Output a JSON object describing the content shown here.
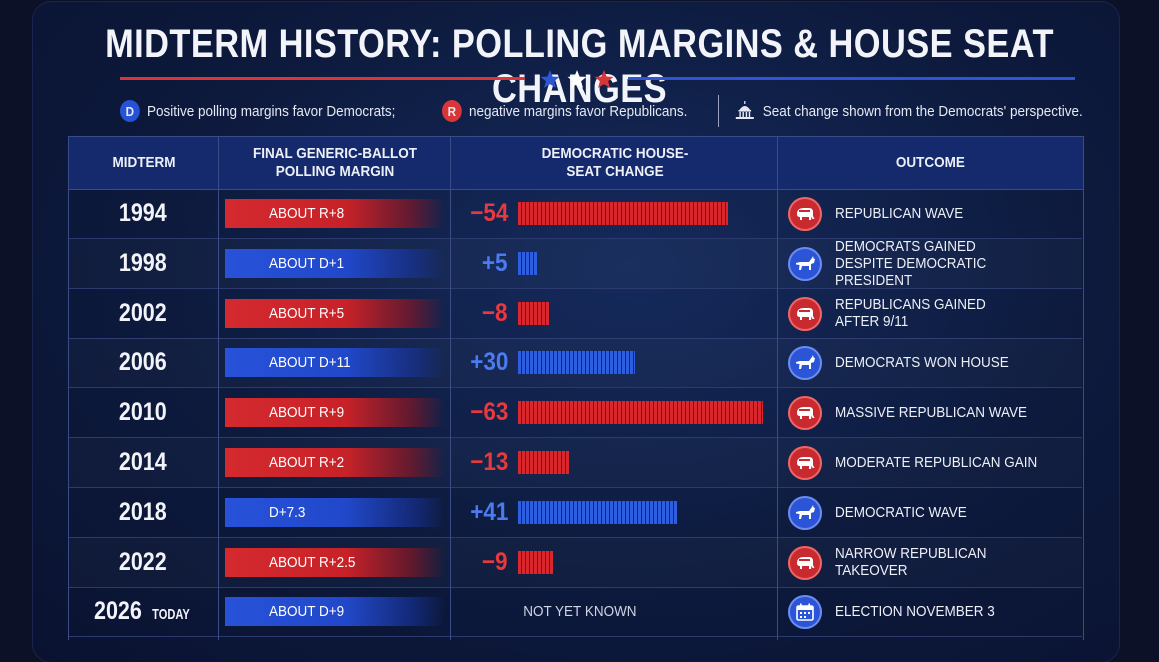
{
  "title": "MIDTERM HISTORY: POLLING MARGINS & HOUSE SEAT CHANGES",
  "legend": {
    "d_badge": "D",
    "d_text": "Positive polling margins favor Democrats;",
    "r_badge": "R",
    "r_text": "negative margins favor Republicans.",
    "seat_note": "Seat change shown from the Democrats' perspective."
  },
  "colors": {
    "republican": "#d42a2f",
    "democrat": "#2752d9",
    "header": "#142a6c",
    "background": "#0d1a3d"
  },
  "headers": {
    "midterm": "MIDTERM",
    "polling": "FINAL GENERIC-BALLOT POLLING MARGIN",
    "seat": "DEMOCRATIC HOUSE-SEAT CHANGE",
    "outcome": "OUTCOME"
  },
  "chart_data": {
    "type": "table",
    "rows": [
      {
        "year": "1994",
        "sub": "",
        "margin": "ABOUT R+8",
        "party": "R",
        "seat_label": "−54",
        "seat_change": -54,
        "outcome": "REPUBLICAN WAVE",
        "icon": "elephant-icon"
      },
      {
        "year": "1998",
        "sub": "",
        "margin": "ABOUT D+1",
        "party": "D",
        "seat_label": "+5",
        "seat_change": 5,
        "outcome": "DEMOCRATS GAINED\nDESPITE DEMOCRATIC PRESIDENT",
        "icon": "donkey-icon"
      },
      {
        "year": "2002",
        "sub": "",
        "margin": "ABOUT R+5",
        "party": "R",
        "seat_label": "−8",
        "seat_change": -8,
        "outcome": "REPUBLICANS GAINED\nAFTER 9/11",
        "icon": "elephant-icon"
      },
      {
        "year": "2006",
        "sub": "",
        "margin": "ABOUT D+11",
        "party": "D",
        "seat_label": "+30",
        "seat_change": 30,
        "outcome": "DEMOCRATS WON HOUSE",
        "icon": "donkey-icon"
      },
      {
        "year": "2010",
        "sub": "",
        "margin": "ABOUT R+9",
        "party": "R",
        "seat_label": "−63",
        "seat_change": -63,
        "outcome": "MASSIVE REPUBLICAN WAVE",
        "icon": "elephant-icon"
      },
      {
        "year": "2014",
        "sub": "",
        "margin": "ABOUT R+2",
        "party": "R",
        "seat_label": "−13",
        "seat_change": -13,
        "outcome": "MODERATE REPUBLICAN GAIN",
        "icon": "elephant-icon"
      },
      {
        "year": "2018",
        "sub": "",
        "margin": "D+7.3",
        "party": "D",
        "seat_label": "+41",
        "seat_change": 41,
        "outcome": "DEMOCRATIC WAVE",
        "icon": "donkey-icon"
      },
      {
        "year": "2022",
        "sub": "",
        "margin": "ABOUT R+2.5",
        "party": "R",
        "seat_label": "−9",
        "seat_change": -9,
        "outcome": "NARROW REPUBLICAN TAKEOVER",
        "icon": "elephant-icon"
      },
      {
        "year": "2026",
        "sub": "TODAY",
        "margin": "ABOUT D+9",
        "party": "D",
        "seat_label": "",
        "seat_change": null,
        "seat_text": "NOT YET KNOWN",
        "outcome": "ELECTION NOVEMBER 3",
        "icon": "calendar-icon"
      }
    ]
  }
}
